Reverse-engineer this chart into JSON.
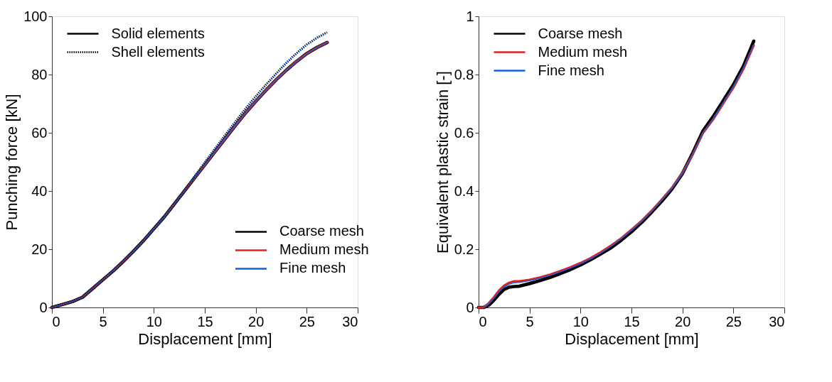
{
  "chart_data": [
    {
      "type": "line",
      "xlabel": "Displacement [mm]",
      "ylabel": "Punching force [kN]",
      "xlim": [
        0,
        30
      ],
      "xticks": [
        0,
        5,
        10,
        15,
        20,
        25,
        30
      ],
      "ylim": [
        0,
        100
      ],
      "yticks": [
        0,
        20,
        40,
        60,
        80,
        100
      ],
      "grid": false,
      "legend": "bottom right",
      "marker": "none",
      "x": [
        0,
        1,
        2,
        3,
        4,
        5,
        6,
        7,
        8,
        9,
        10,
        11,
        12,
        13,
        14,
        15,
        16,
        17,
        18,
        19,
        20,
        21,
        22,
        23,
        24,
        25,
        26,
        27
      ],
      "annotations": [
        "Solid elements",
        "Shell elements"
      ],
      "series": [
        {
          "name": "Coarse mesh",
          "color": "#000000",
          "line_style": "solid",
          "values": [
            0,
            1,
            2,
            3.5,
            6.5,
            9.5,
            12.5,
            15.8,
            19.3,
            23,
            27,
            31,
            35.5,
            40,
            44.5,
            49,
            53.5,
            58,
            62.5,
            66.8,
            70.8,
            74.6,
            78.2,
            81.5,
            84.5,
            87.2,
            89.3,
            91
          ]
        },
        {
          "name": "Medium mesh",
          "color": "#e02020",
          "line_style": "solid",
          "values": [
            0,
            1,
            2,
            3.5,
            6.5,
            9.5,
            12.5,
            15.8,
            19.3,
            23,
            27,
            31,
            35.5,
            40,
            44.5,
            49,
            53.5,
            58,
            62.5,
            66.8,
            70.8,
            74.6,
            78.2,
            81.5,
            84.5,
            87.2,
            89.3,
            91
          ]
        },
        {
          "name": "Fine mesh",
          "color": "#1060e0",
          "line_style": "solid",
          "values": [
            0,
            1,
            2,
            3.5,
            6.5,
            9.5,
            12.5,
            15.8,
            19.3,
            23,
            27,
            31,
            35.5,
            40,
            44.5,
            49,
            53.5,
            58,
            62.5,
            66.8,
            70.8,
            74.6,
            78.2,
            81.5,
            84.5,
            87.2,
            89.3,
            91
          ]
        },
        {
          "color": "#000000",
          "line_style": "dotted",
          "values": [
            0,
            1,
            2,
            3.5,
            6.5,
            9.5,
            12.5,
            15.8,
            19.3,
            23,
            27,
            31,
            35.5,
            40,
            45,
            49.8,
            54.5,
            59.2,
            63.8,
            68.3,
            72.5,
            76.5,
            80.3,
            84,
            87.3,
            90.3,
            92.6,
            94.5
          ]
        },
        {
          "color": "#1060e0",
          "line_style": "dotted",
          "values": [
            0,
            1,
            2,
            3.5,
            6.5,
            9.5,
            12.5,
            15.8,
            19.3,
            23,
            27,
            31,
            35.5,
            40,
            45,
            49.8,
            54.5,
            59.2,
            63.8,
            68.3,
            72.5,
            76.5,
            80.3,
            84,
            87.3,
            90.3,
            92.6,
            94.5
          ]
        }
      ]
    },
    {
      "type": "line",
      "xlabel": "Displacement [mm]",
      "ylabel": "Equivalent plastic strain [-]",
      "xlim": [
        0,
        30
      ],
      "xticks": [
        0,
        5,
        10,
        15,
        20,
        25,
        30
      ],
      "ylim": [
        0,
        1
      ],
      "yticks": [
        0,
        0.2,
        0.4,
        0.6,
        0.8,
        1
      ],
      "grid": false,
      "legend": "top left",
      "marker": "none",
      "x": [
        0,
        0.5,
        1,
        1.5,
        2,
        2.5,
        3,
        3.5,
        4,
        5,
        6,
        7,
        8,
        9,
        10,
        11,
        12,
        13,
        14,
        15,
        16,
        17,
        18,
        19,
        20,
        21,
        22,
        23,
        24,
        25,
        26,
        27
      ],
      "series": [
        {
          "name": "Coarse mesh",
          "color": "#000000",
          "line_style": "solid",
          "values": [
            0,
            0,
            0.008,
            0.025,
            0.045,
            0.062,
            0.07,
            0.072,
            0.073,
            0.082,
            0.092,
            0.103,
            0.116,
            0.13,
            0.146,
            0.164,
            0.184,
            0.205,
            0.231,
            0.26,
            0.292,
            0.328,
            0.366,
            0.408,
            0.46,
            0.53,
            0.605,
            0.655,
            0.71,
            0.765,
            0.83,
            0.915
          ]
        },
        {
          "name": "Medium mesh",
          "color": "#e02020",
          "line_style": "solid",
          "values": [
            0,
            0,
            0.015,
            0.035,
            0.058,
            0.075,
            0.085,
            0.09,
            0.09,
            0.095,
            0.103,
            0.113,
            0.125,
            0.138,
            0.153,
            0.17,
            0.19,
            0.213,
            0.238,
            0.267,
            0.298,
            0.333,
            0.372,
            0.413,
            0.462,
            0.525,
            0.598,
            0.645,
            0.7,
            0.755,
            0.82,
            0.9
          ]
        },
        {
          "name": "Fine mesh",
          "color": "#1060e0",
          "line_style": "solid",
          "values": [
            null,
            0,
            0.012,
            0.031,
            0.053,
            0.07,
            0.08,
            0.085,
            0.086,
            0.092,
            0.1,
            0.11,
            0.122,
            0.135,
            0.15,
            0.167,
            0.187,
            0.21,
            0.236,
            0.265,
            0.296,
            0.331,
            0.37,
            0.411,
            0.461,
            0.525,
            0.598,
            0.647,
            0.702,
            0.758,
            0.823,
            0.903
          ]
        }
      ]
    }
  ]
}
